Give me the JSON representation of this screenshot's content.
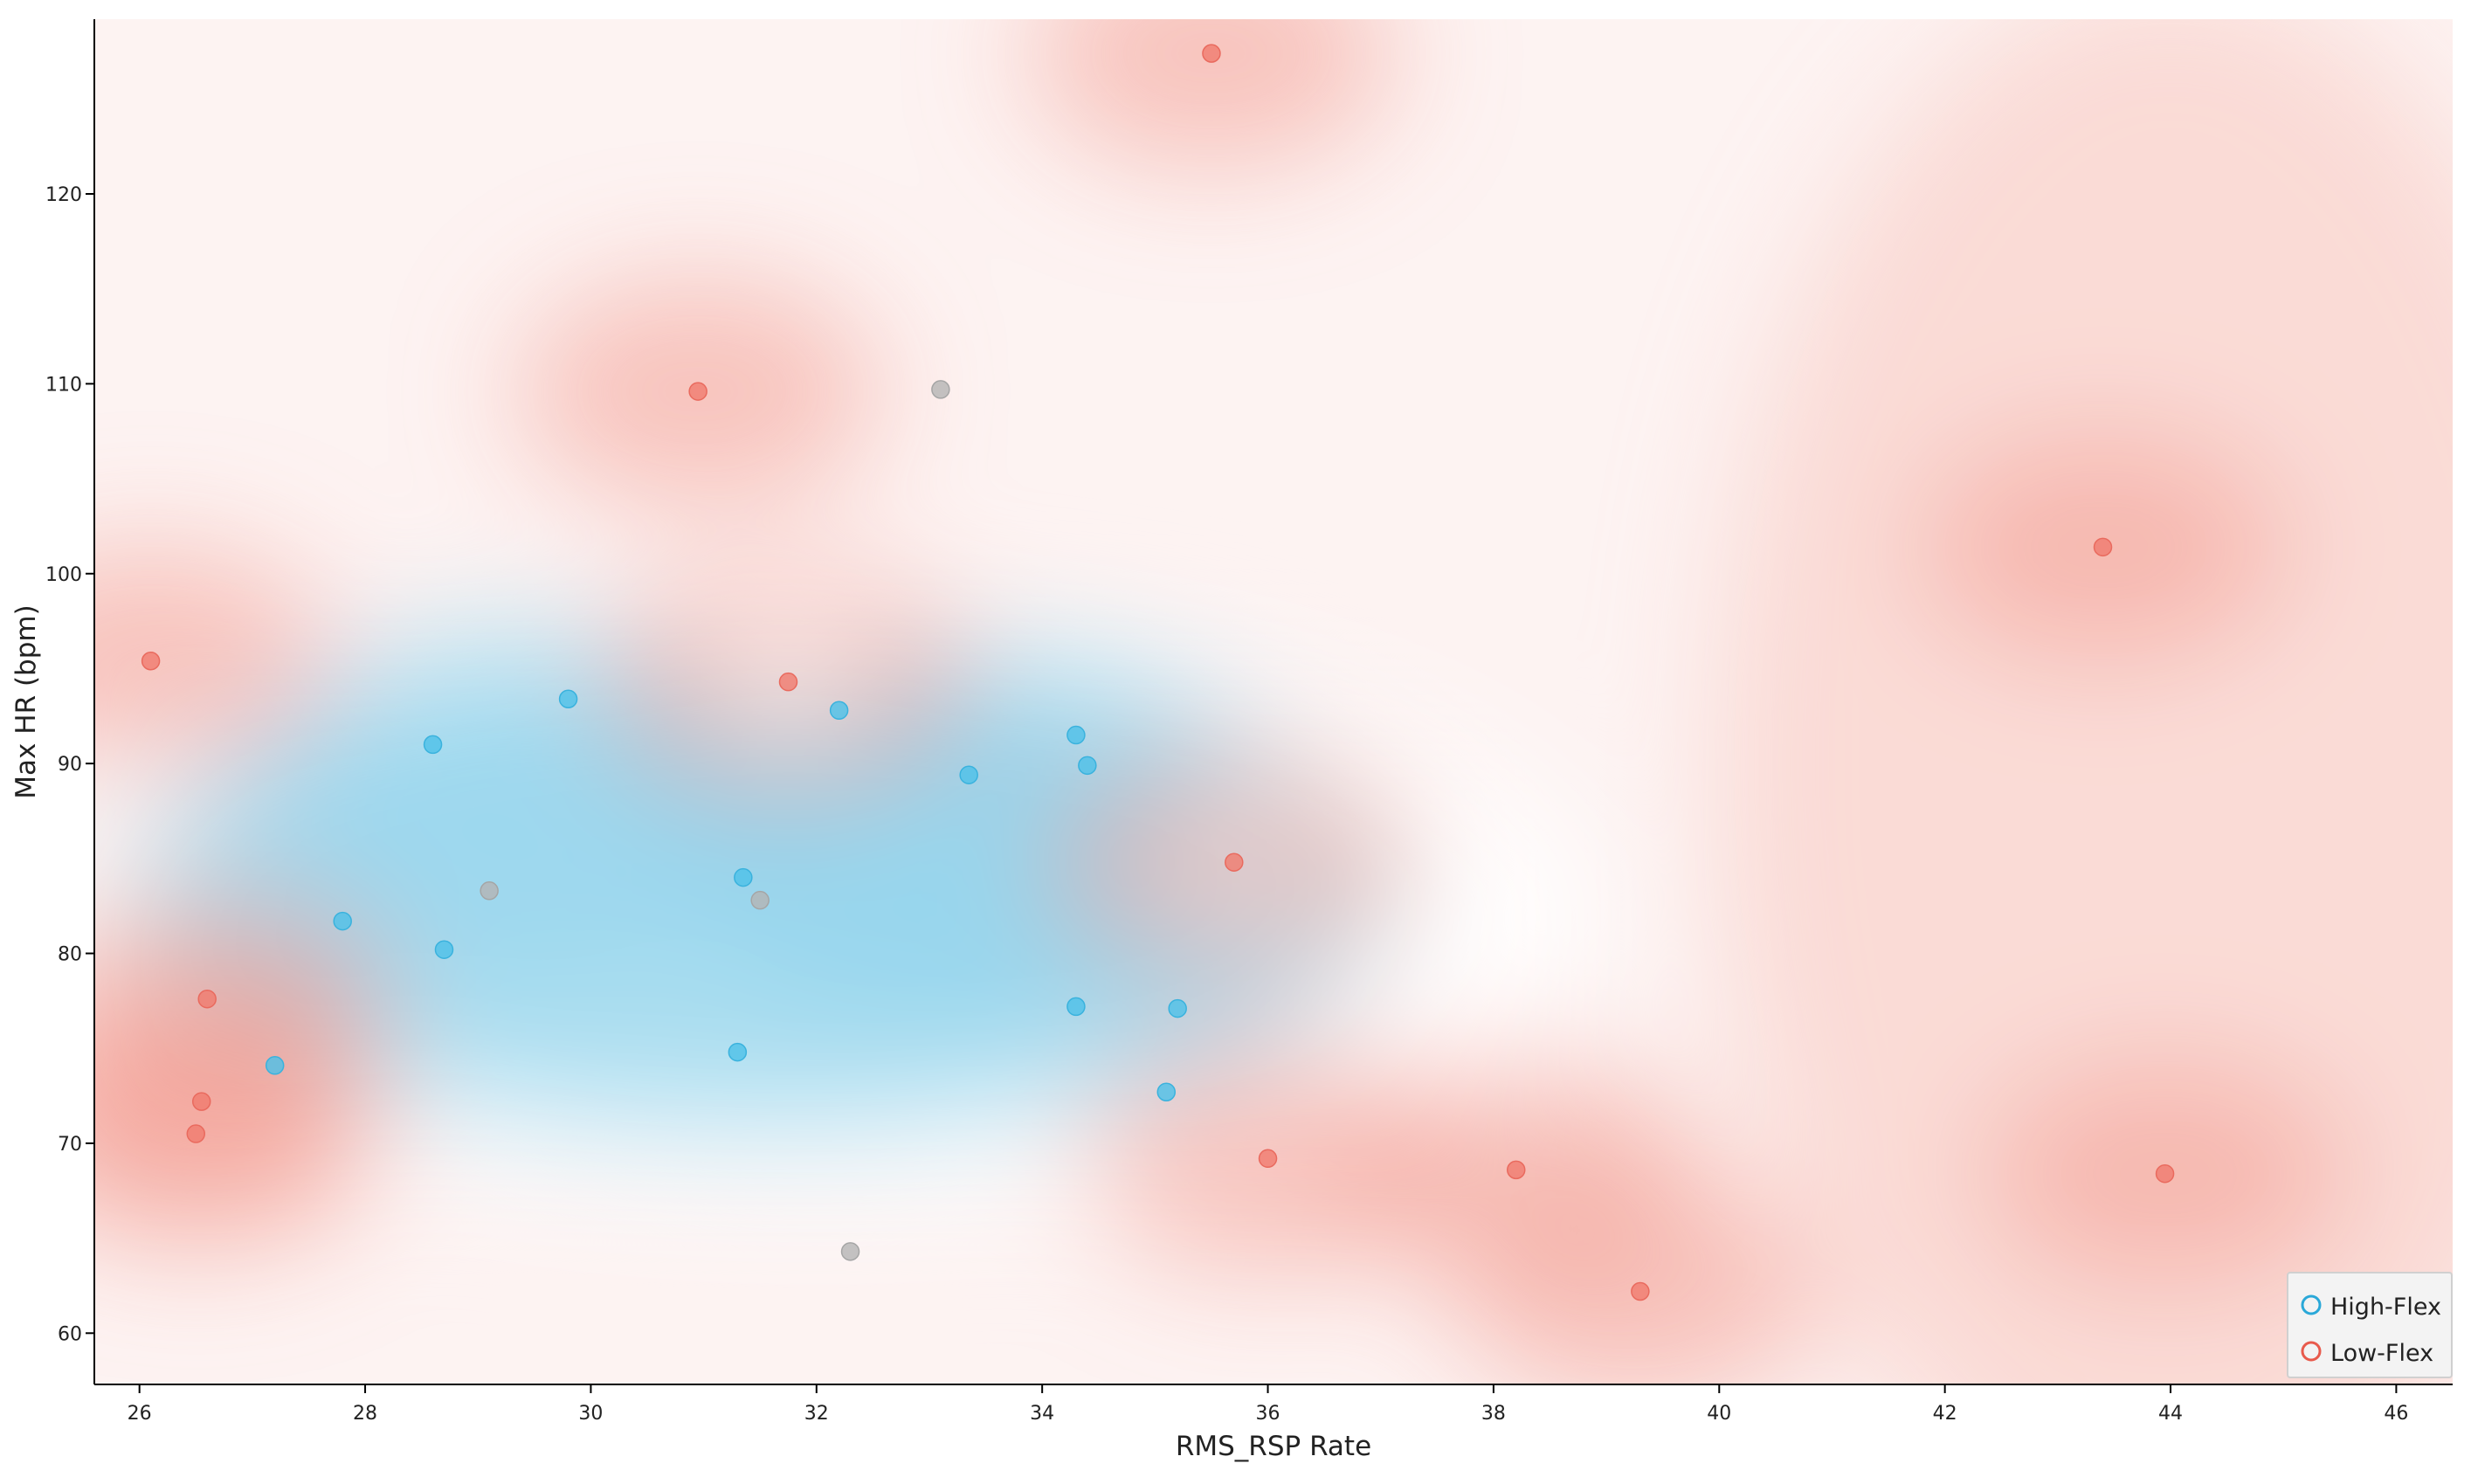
{
  "chart_data": {
    "type": "scatter",
    "title": "",
    "xlabel": "RMS_RSP Rate",
    "ylabel": "Max HR (bpm)",
    "xlim": [
      25.6,
      46.5
    ],
    "ylim": [
      57.3,
      129.2
    ],
    "x_ticks": [
      26,
      28,
      30,
      32,
      34,
      36,
      38,
      40,
      42,
      44,
      46
    ],
    "y_ticks": [
      60,
      70,
      80,
      90,
      100,
      110,
      120
    ],
    "grid": false,
    "legend_position": "bottom-right",
    "background": "classification decision surface (blue = High-Flex region, red = Low-Flex region)",
    "colors": {
      "high_flex": "#4cc0e8",
      "low_flex": "#f07a6e",
      "unlabeled": "#b4b4b4",
      "axis": "#000000"
    },
    "series": [
      {
        "name": "High-Flex",
        "points": [
          [
            27.2,
            74.1
          ],
          [
            27.8,
            81.7
          ],
          [
            28.6,
            91.0
          ],
          [
            28.7,
            80.2
          ],
          [
            29.8,
            93.4
          ],
          [
            31.3,
            74.8
          ],
          [
            31.35,
            84.0
          ],
          [
            32.2,
            92.8
          ],
          [
            33.35,
            89.4
          ],
          [
            34.3,
            91.5
          ],
          [
            34.4,
            89.9
          ],
          [
            34.3,
            77.2
          ],
          [
            35.2,
            77.1
          ],
          [
            35.1,
            72.7
          ]
        ]
      },
      {
        "name": "Low-Flex",
        "points": [
          [
            26.1,
            95.4
          ],
          [
            26.6,
            77.6
          ],
          [
            26.55,
            72.2
          ],
          [
            26.5,
            70.5
          ],
          [
            30.95,
            109.6
          ],
          [
            31.75,
            94.3
          ],
          [
            35.5,
            127.4
          ],
          [
            35.7,
            84.8
          ],
          [
            36.0,
            69.2
          ],
          [
            38.2,
            68.6
          ],
          [
            39.3,
            62.2
          ],
          [
            43.4,
            101.4
          ],
          [
            43.95,
            68.4
          ]
        ]
      },
      {
        "name": "",
        "points": [
          [
            29.1,
            83.3
          ],
          [
            31.5,
            82.8
          ],
          [
            33.1,
            109.7
          ],
          [
            32.3,
            64.3
          ]
        ]
      }
    ]
  }
}
